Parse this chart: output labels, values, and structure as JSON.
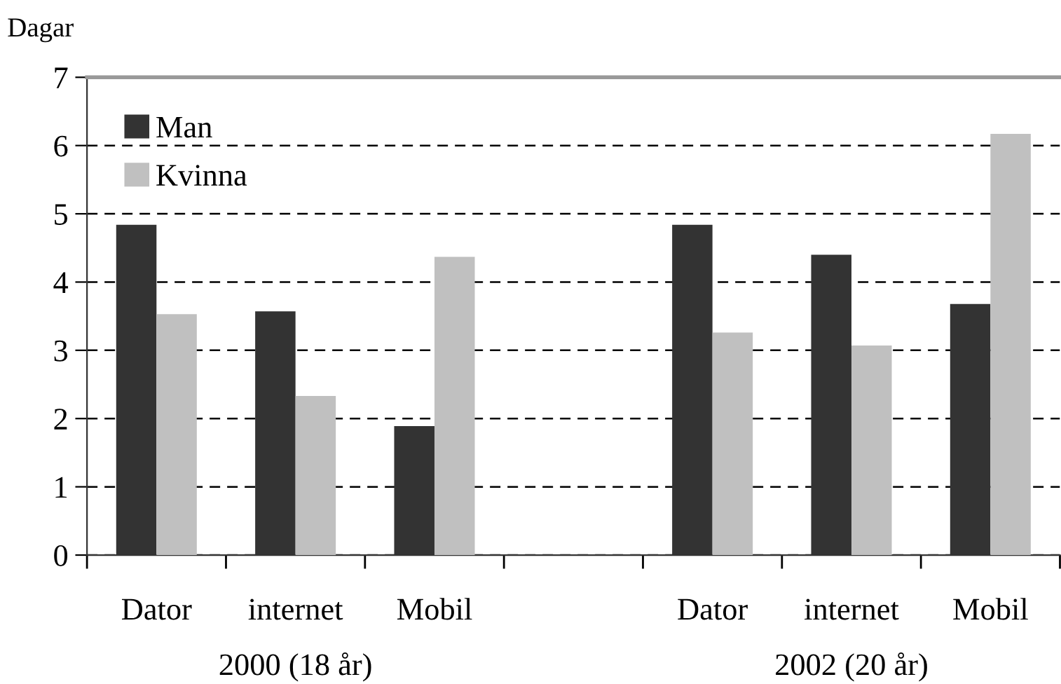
{
  "chart_data": {
    "type": "bar",
    "ylabel": "Dagar",
    "categories": [
      "Dator",
      "internet",
      "Mobil",
      null,
      "Dator",
      "internet",
      "Mobil"
    ],
    "series": [
      {
        "name": "Man",
        "color": "#333333",
        "values": [
          4.84,
          3.57,
          1.89,
          null,
          4.84,
          4.4,
          3.68
        ]
      },
      {
        "name": "Kvinna",
        "color": "#c0c0c0",
        "values": [
          3.53,
          2.33,
          4.37,
          null,
          3.26,
          3.07,
          6.17
        ]
      }
    ],
    "annotations": [
      "2000 (18 år)",
      "2002 (20 år)"
    ],
    "ylim": [
      0,
      7
    ],
    "yticks": [
      0,
      1,
      2,
      3,
      4,
      5,
      6,
      7
    ],
    "grid": "y",
    "legend": "top left"
  }
}
